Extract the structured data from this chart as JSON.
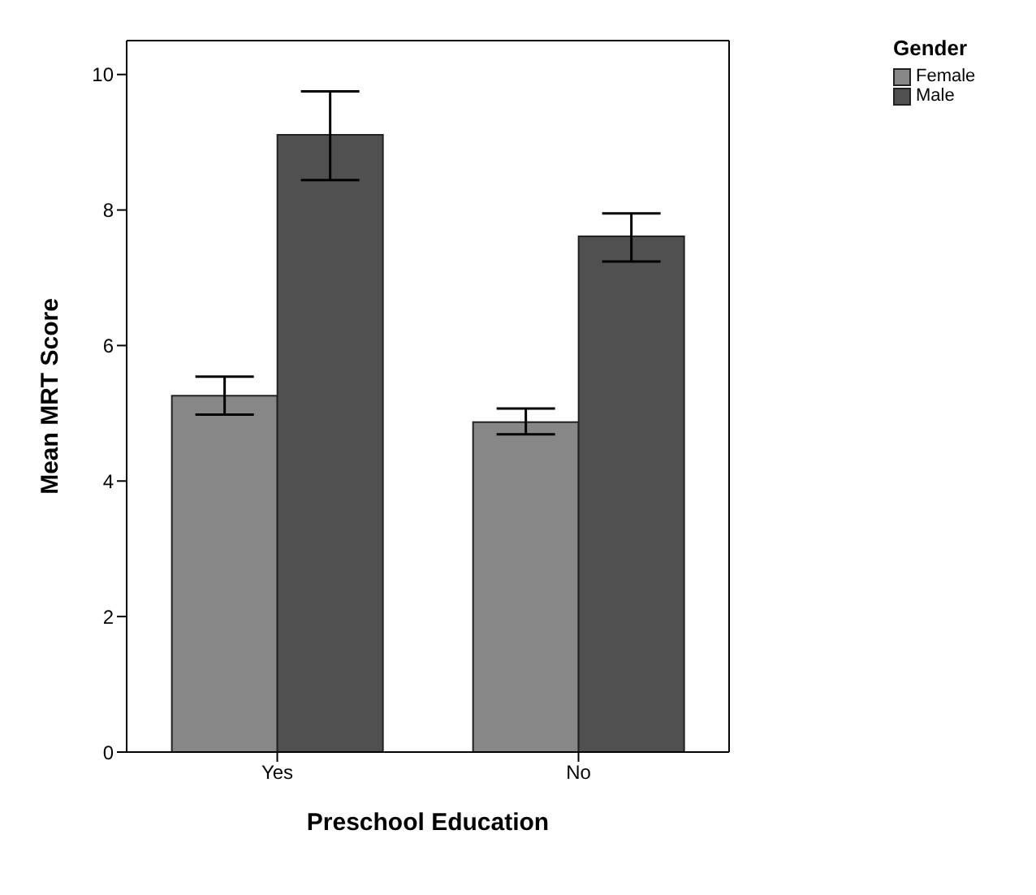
{
  "chart_data": {
    "type": "bar",
    "xlabel": "Preschool Education",
    "ylabel": "Mean MRT Score",
    "legend_title": "Gender",
    "categories": [
      "Yes",
      "No"
    ],
    "series": [
      {
        "name": "Female",
        "color": "#878787",
        "values": [
          5.26,
          4.87
        ],
        "errors": [
          [
            4.98,
            5.54
          ],
          [
            4.69,
            5.07
          ]
        ]
      },
      {
        "name": "Male",
        "color": "#505050",
        "values": [
          9.11,
          7.61
        ],
        "errors": [
          [
            8.44,
            9.75
          ],
          [
            7.24,
            7.95
          ]
        ]
      }
    ],
    "ylim": [
      0,
      10.5
    ],
    "yticks": [
      0,
      2,
      4,
      6,
      8,
      10
    ],
    "grid": false,
    "legend": "top right"
  }
}
